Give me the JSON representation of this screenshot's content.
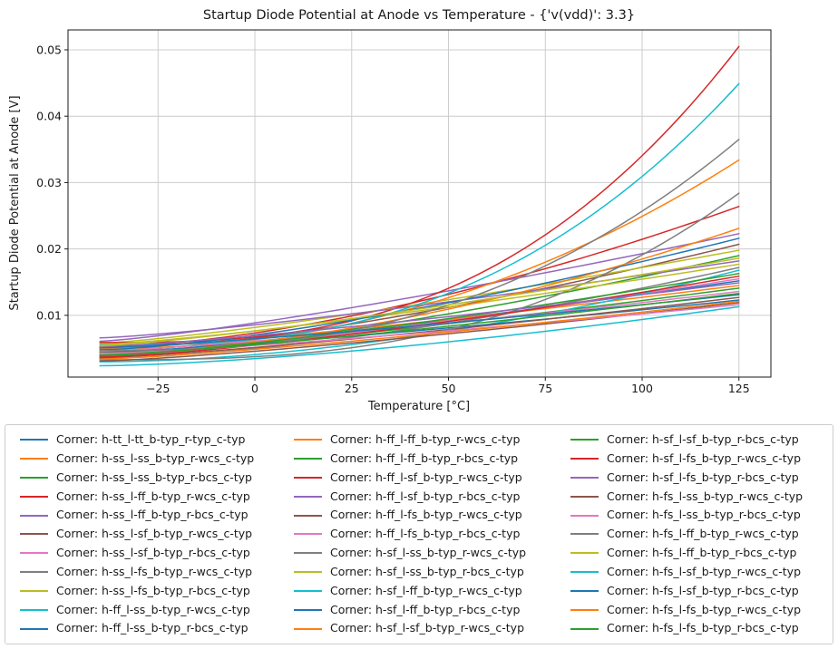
{
  "title": "Startup Diode Potential at Anode vs Temperature - {'v(vdd)': 3.3}",
  "chart_data": {
    "type": "line",
    "title": "Startup Diode Potential at Anode vs Temperature - {'v(vdd)': 3.3}",
    "xlabel": "Temperature [°C]",
    "ylabel": "Startup Diode Potential at Anode [V]",
    "xlim": [
      -48.25,
      133.25
    ],
    "ylim": [
      0.0007,
      0.053
    ],
    "x_data_range": [
      -40,
      125
    ],
    "grid": true,
    "legend_position": "below",
    "legend_columns": 3,
    "x_ticks": [
      {
        "value": -25,
        "label": "−25"
      },
      {
        "value": 0,
        "label": "0"
      },
      {
        "value": 25,
        "label": "25"
      },
      {
        "value": 50,
        "label": "50"
      },
      {
        "value": 75,
        "label": "75"
      },
      {
        "value": 100,
        "label": "100"
      },
      {
        "value": 125,
        "label": "125"
      }
    ],
    "y_ticks": [
      {
        "value": 0.01,
        "label": "0.01"
      },
      {
        "value": 0.02,
        "label": "0.02"
      },
      {
        "value": 0.03,
        "label": "0.03"
      },
      {
        "value": 0.04,
        "label": "0.04"
      },
      {
        "value": 0.05,
        "label": "0.05"
      }
    ],
    "series": [
      {
        "label": "Corner: h-tt_l-tt_b-typ_r-typ_c-typ",
        "color": "#1f77b4",
        "v_at_minus40C": 0.0042,
        "v_at_125C": 0.0152
      },
      {
        "label": "Corner: h-ss_l-ss_b-typ_r-wcs_c-typ",
        "color": "#ff7f0e",
        "v_at_minus40C": 0.0049,
        "v_at_125C": 0.0145
      },
      {
        "label": "Corner: h-ss_l-ss_b-typ_r-bcs_c-typ",
        "color": "#2ca02c",
        "v_at_minus40C": 0.004,
        "v_at_125C": 0.0141
      },
      {
        "label": "Corner: h-ss_l-ff_b-typ_r-wcs_c-typ",
        "color": "#d62728",
        "v_at_minus40C": 0.0052,
        "v_at_125C": 0.0264
      },
      {
        "label": "Corner: h-ss_l-ff_b-typ_r-bcs_c-typ",
        "color": "#9467bd",
        "v_at_minus40C": 0.0061,
        "v_at_125C": 0.0223
      },
      {
        "label": "Corner: h-ss_l-sf_b-typ_r-wcs_c-typ",
        "color": "#8c564b",
        "v_at_minus40C": 0.0045,
        "v_at_125C": 0.0207
      },
      {
        "label": "Corner: h-ss_l-sf_b-typ_r-bcs_c-typ",
        "color": "#e377c2",
        "v_at_minus40C": 0.0038,
        "v_at_125C": 0.0155
      },
      {
        "label": "Corner: h-ss_l-fs_b-typ_r-wcs_c-typ",
        "color": "#7f7f7f",
        "v_at_minus40C": 0.0035,
        "v_at_125C": 0.0172
      },
      {
        "label": "Corner: h-ss_l-fs_b-typ_r-bcs_c-typ",
        "color": "#bcbd22",
        "v_at_minus40C": 0.0058,
        "v_at_125C": 0.0198
      },
      {
        "label": "Corner: h-ff_l-ss_b-typ_r-wcs_c-typ",
        "color": "#17becf",
        "v_at_minus40C": 0.003,
        "v_at_125C": 0.0168
      },
      {
        "label": "Corner: h-ff_l-ss_b-typ_r-bcs_c-typ",
        "color": "#1f77b4",
        "v_at_minus40C": 0.0044,
        "v_at_125C": 0.0123
      },
      {
        "label": "Corner: h-ff_l-ff_b-typ_r-wcs_c-typ",
        "color": "#ff7f0e",
        "v_at_minus40C": 0.005,
        "v_at_125C": 0.0334
      },
      {
        "label": "Corner: h-ff_l-ff_b-typ_r-bcs_c-typ",
        "color": "#2ca02c",
        "v_at_minus40C": 0.0041,
        "v_at_125C": 0.019
      },
      {
        "label": "Corner: h-ff_l-sf_b-typ_r-wcs_c-typ",
        "color": "#d62728",
        "v_at_minus40C": 0.0059,
        "v_at_125C": 0.0505
      },
      {
        "label": "Corner: h-ff_l-sf_b-typ_r-bcs_c-typ",
        "color": "#9467bd",
        "v_at_minus40C": 0.0066,
        "v_at_125C": 0.0182
      },
      {
        "label": "Corner: h-ff_l-fs_b-typ_r-wcs_c-typ",
        "color": "#8c564b",
        "v_at_minus40C": 0.0036,
        "v_at_125C": 0.0127
      },
      {
        "label": "Corner: h-ff_l-fs_b-typ_r-bcs_c-typ",
        "color": "#e377c2",
        "v_at_minus40C": 0.0046,
        "v_at_125C": 0.0136
      },
      {
        "label": "Corner: h-sf_l-ss_b-typ_r-wcs_c-typ",
        "color": "#7f7f7f",
        "v_at_minus40C": 0.0033,
        "v_at_125C": 0.0284
      },
      {
        "label": "Corner: h-sf_l-ss_b-typ_r-bcs_c-typ",
        "color": "#bcbd22",
        "v_at_minus40C": 0.0056,
        "v_at_125C": 0.0177
      },
      {
        "label": "Corner: h-sf_l-ff_b-typ_r-wcs_c-typ",
        "color": "#17becf",
        "v_at_minus40C": 0.0055,
        "v_at_125C": 0.0449
      },
      {
        "label": "Corner: h-sf_l-ff_b-typ_r-bcs_c-typ",
        "color": "#1f77b4",
        "v_at_minus40C": 0.0048,
        "v_at_125C": 0.0216
      },
      {
        "label": "Corner: h-sf_l-sf_b-typ_r-wcs_c-typ",
        "color": "#ff7f0e",
        "v_at_minus40C": 0.0043,
        "v_at_125C": 0.0231
      },
      {
        "label": "Corner: h-sf_l-sf_b-typ_r-bcs_c-typ",
        "color": "#2ca02c",
        "v_at_minus40C": 0.0039,
        "v_at_125C": 0.0163
      },
      {
        "label": "Corner: h-sf_l-fs_b-typ_r-wcs_c-typ",
        "color": "#d62728",
        "v_at_minus40C": 0.0037,
        "v_at_125C": 0.0159
      },
      {
        "label": "Corner: h-sf_l-fs_b-typ_r-bcs_c-typ",
        "color": "#9467bd",
        "v_at_minus40C": 0.0053,
        "v_at_125C": 0.0149
      },
      {
        "label": "Corner: h-fs_l-ss_b-typ_r-wcs_c-typ",
        "color": "#8c564b",
        "v_at_minus40C": 0.0031,
        "v_at_125C": 0.0119
      },
      {
        "label": "Corner: h-fs_l-ss_b-typ_r-bcs_c-typ",
        "color": "#e377c2",
        "v_at_minus40C": 0.0042,
        "v_at_125C": 0.0116
      },
      {
        "label": "Corner: h-fs_l-ff_b-typ_r-wcs_c-typ",
        "color": "#7f7f7f",
        "v_at_minus40C": 0.0047,
        "v_at_125C": 0.0365
      },
      {
        "label": "Corner: h-fs_l-ff_b-typ_r-bcs_c-typ",
        "color": "#bcbd22",
        "v_at_minus40C": 0.0054,
        "v_at_125C": 0.0186
      },
      {
        "label": "Corner: h-fs_l-sf_b-typ_r-wcs_c-typ",
        "color": "#17becf",
        "v_at_minus40C": 0.0024,
        "v_at_125C": 0.0113
      },
      {
        "label": "Corner: h-fs_l-sf_b-typ_r-bcs_c-typ",
        "color": "#1f77b4",
        "v_at_minus40C": 0.0051,
        "v_at_125C": 0.0131
      },
      {
        "label": "Corner: h-fs_l-fs_b-typ_r-wcs_c-typ",
        "color": "#ff7f0e",
        "v_at_minus40C": 0.0034,
        "v_at_125C": 0.0121
      },
      {
        "label": "Corner: h-fs_l-fs_b-typ_r-bcs_c-typ",
        "color": "#2ca02c",
        "v_at_minus40C": 0.004,
        "v_at_125C": 0.0133
      }
    ]
  },
  "style_colors": {
    "grid": "#cccccc",
    "spine": "#1a1a1a",
    "legend_border": "#cccccc",
    "text": "#1a1a1a"
  }
}
